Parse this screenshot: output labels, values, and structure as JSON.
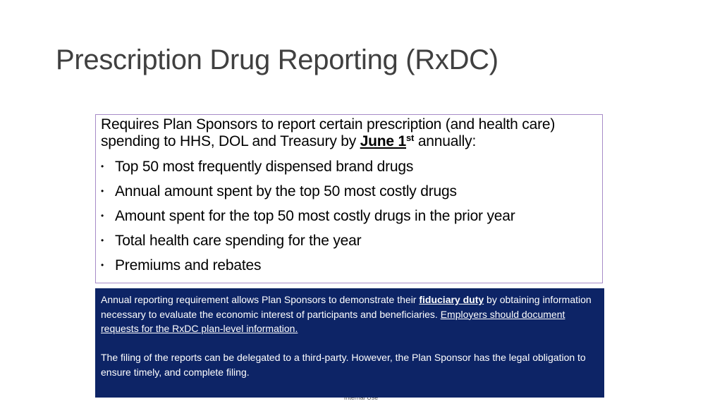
{
  "slide": {
    "title": "Prescription Drug Reporting (RxDC)"
  },
  "requirements": {
    "intro_before": "Requires Plan Sponsors to report certain prescription (and health care) spending to HHS, DOL and Treasury by ",
    "deadline_text": "June 1",
    "deadline_suffix": "st",
    "intro_after": " annually:",
    "bullets": [
      "Top 50 most frequently dispensed brand drugs",
      "Annual amount spent by the top 50 most costly drugs",
      "Amount spent for the top 50 most costly drugs in the prior year",
      "Total health care spending for the year",
      "Premiums and rebates"
    ],
    "bullet_glyph": "•"
  },
  "note": {
    "p1_before": "Annual reporting requirement allows Plan Sponsors to demonstrate their ",
    "p1_emphasis": "fiduciary duty",
    "p1_middle": " by obtaining information necessary to evaluate the economic interest of participants and beneficiaries.  ",
    "p1_underlined": "Employers should document requests for the RxDC plan-level information.",
    "p2": "The filing of the reports can be delegated to a third-party. However, the Plan Sponsor has the legal obligation to ensure timely, and complete filing."
  },
  "footer": {
    "classification": "Internal Use"
  },
  "colors": {
    "title_text": "#404040",
    "box_border": "#a78bc8",
    "note_background": "#0d2466",
    "note_text": "#ffffff"
  }
}
